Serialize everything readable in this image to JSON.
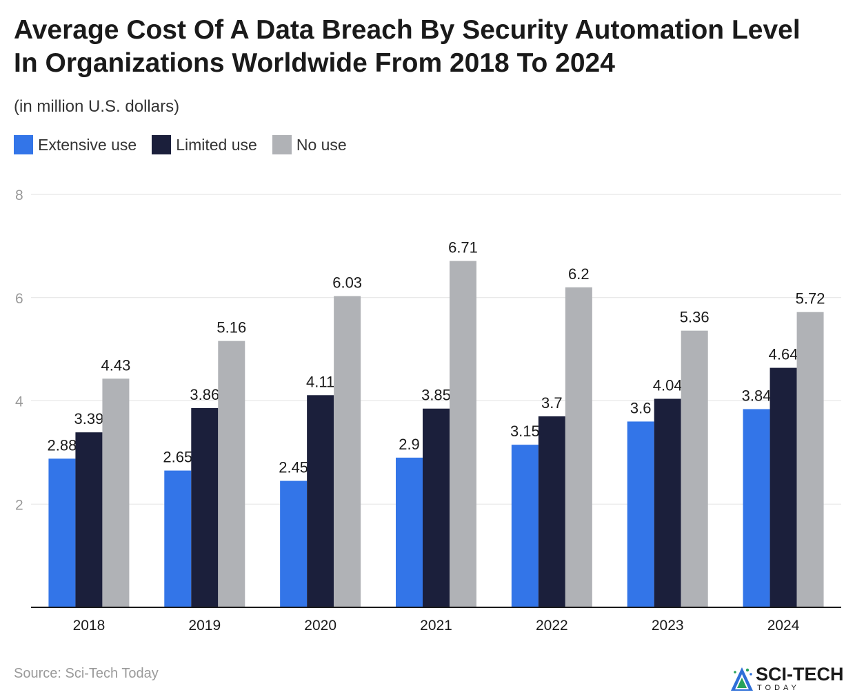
{
  "title": "Average Cost Of A Data Breach By Security Automation Level In Organizations Worldwide From 2018 To 2024",
  "subtitle": "(in million U.S. dollars)",
  "source": "Source: Sci-Tech Today",
  "logo": {
    "name": "SCI-TECH",
    "tagline": "TODAY"
  },
  "colors": {
    "extensive": "#3375e8",
    "limited": "#1b1f3b",
    "none": "#b0b2b6",
    "grid": "#e2e2e2",
    "axis": "#1a1a1a"
  },
  "chart_data": {
    "type": "bar",
    "title": "Average Cost Of A Data Breach By Security Automation Level In Organizations Worldwide From 2018 To 2024",
    "subtitle": "(in million U.S. dollars)",
    "categories": [
      "2018",
      "2019",
      "2020",
      "2021",
      "2022",
      "2023",
      "2024"
    ],
    "series": [
      {
        "name": "Extensive use",
        "color": "#3375e8",
        "values": [
          2.88,
          2.65,
          2.45,
          2.9,
          3.15,
          3.6,
          3.84
        ]
      },
      {
        "name": "Limited use",
        "color": "#1b1f3b",
        "values": [
          3.39,
          3.86,
          4.11,
          3.85,
          3.7,
          4.04,
          4.64
        ]
      },
      {
        "name": "No use",
        "color": "#b0b2b6",
        "values": [
          4.43,
          5.16,
          6.03,
          6.71,
          6.2,
          5.36,
          5.72
        ]
      }
    ],
    "yticks": [
      "2",
      "4",
      "6",
      "8"
    ],
    "ylim": [
      0,
      8
    ],
    "grid": true,
    "legend": "top-left",
    "xlabel": "",
    "ylabel": ""
  }
}
